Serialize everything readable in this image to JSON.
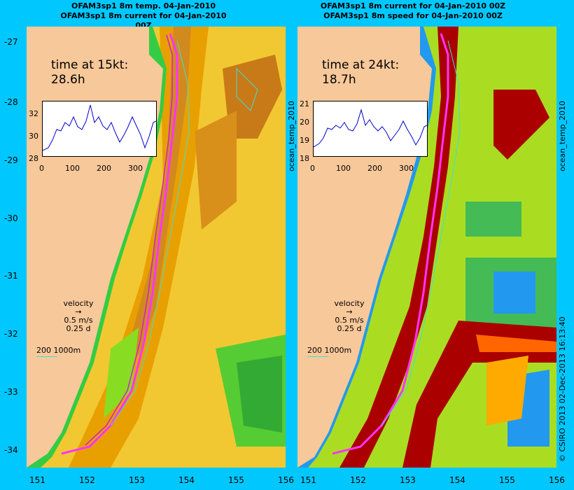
{
  "left": {
    "title1": "OFAM3sp1 8m temp. 04-Jan-2010",
    "title2": "OFAM3sp1 8m current for 04-Jan-2010 00Z",
    "time_label": "time at 15kt:",
    "time_value": "28.6h",
    "inset_yticks": [
      "32",
      "30",
      "28"
    ],
    "inset_xticks": [
      "0",
      "100",
      "200",
      "300"
    ],
    "side_label": "ocean_temp_2010"
  },
  "right": {
    "title1": "OFAM3sp1 8m current for 04-Jan-2010 00Z",
    "title2": "OFAM3sp1 8m speed for 04-Jan-2010 00Z",
    "time_label": "time at 24kt:",
    "time_value": "18.7h",
    "inset_yticks": [
      "21",
      "20",
      "19",
      "18"
    ],
    "inset_xticks": [
      "0",
      "100",
      "200",
      "300"
    ],
    "side_label": "ocean_temp_2010"
  },
  "legend": {
    "title": "velocity",
    "speed": "0.5 m/s",
    "dur": "0.25 d"
  },
  "scale": {
    "label": "200  1000m"
  },
  "yticks": [
    "-27",
    "-28",
    "-29",
    "-30",
    "-31",
    "-32",
    "-33",
    "-34"
  ],
  "xticks": [
    "151",
    "152",
    "153",
    "154",
    "155",
    "156"
  ],
  "copyright": "© CSIRO 2013   02-Dec-2013 16:13:40",
  "colors": {
    "background": "#00c8ff",
    "land": "#f7c89a",
    "track": "#ff33ff",
    "shelf": "#40e0d0"
  }
}
